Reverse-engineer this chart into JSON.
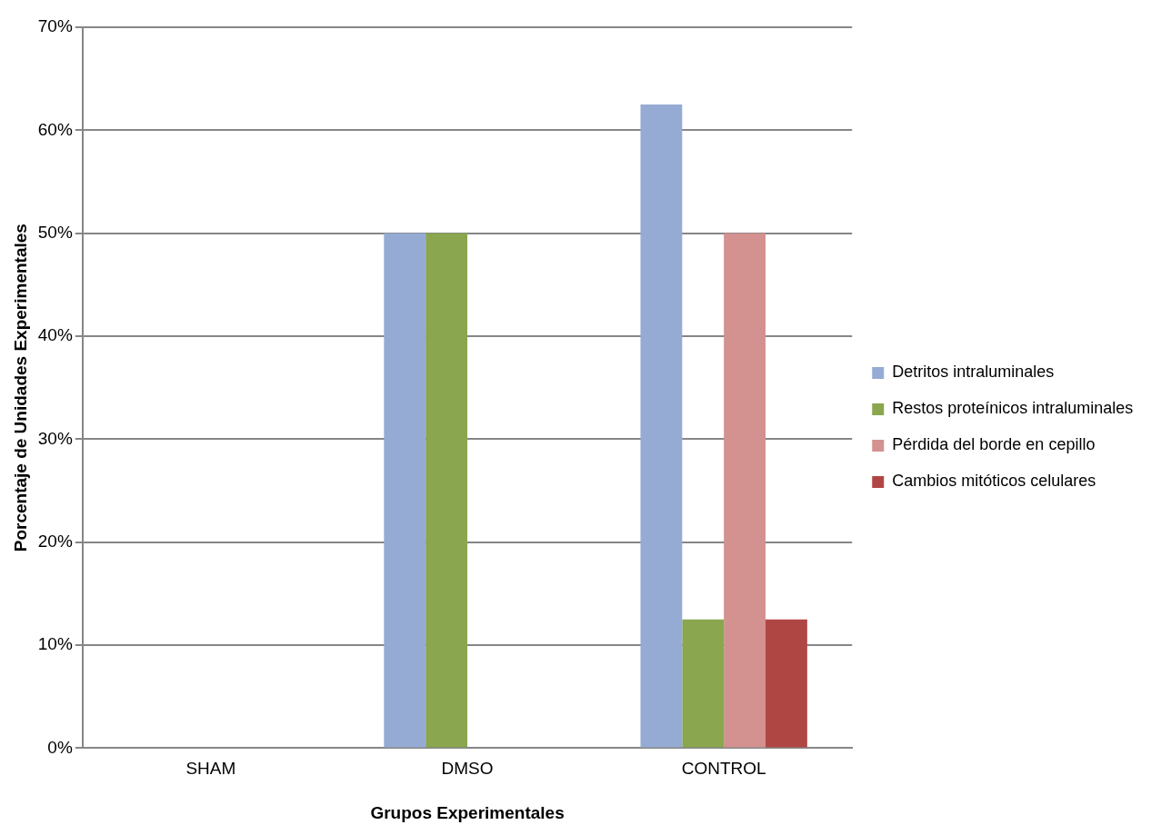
{
  "chart_data": {
    "type": "bar",
    "xlabel": "Grupos Experimentales",
    "ylabel": "Porcentaje de Unidades Experimentales",
    "categories": [
      "SHAM",
      "DMSO",
      "CONTROL"
    ],
    "series": [
      {
        "name": "Detritos intraluminales",
        "color": "#95abd4",
        "values": [
          0,
          50,
          62.5
        ]
      },
      {
        "name": "Restos proteínicos intraluminales",
        "color": "#8aa64f",
        "values": [
          0,
          50,
          12.5
        ]
      },
      {
        "name": "Pérdida del borde en cepillo",
        "color": "#d39190",
        "values": [
          0,
          0,
          50
        ]
      },
      {
        "name": "Cambios mitóticos celulares",
        "color": "#b04643",
        "values": [
          0,
          0,
          12.5
        ]
      }
    ],
    "ylim": [
      0,
      70
    ],
    "yticks": [
      {
        "value": 0,
        "label": "0%"
      },
      {
        "value": 10,
        "label": "10%"
      },
      {
        "value": 20,
        "label": "20%"
      },
      {
        "value": 30,
        "label": "30%"
      },
      {
        "value": 40,
        "label": "40%"
      },
      {
        "value": 50,
        "label": "50%"
      },
      {
        "value": 60,
        "label": "60%"
      },
      {
        "value": 70,
        "label": "70%"
      }
    ],
    "grid": "y",
    "legend": "right"
  }
}
